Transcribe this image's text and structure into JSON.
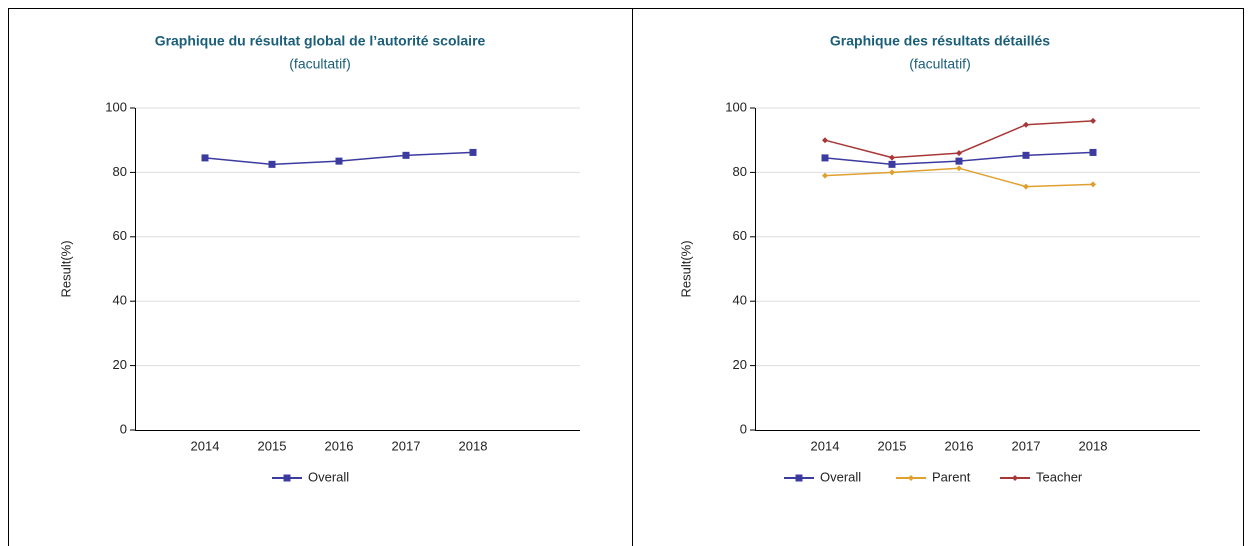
{
  "chart_data": [
    {
      "type": "line",
      "title": "Graphique du résultat global de l’autorité scolaire",
      "subtitle": "(facultatif)",
      "y_label": "Result(%)",
      "categories": [
        "2014",
        "2015",
        "2016",
        "2017",
        "2018"
      ],
      "ylim": [
        0,
        100
      ],
      "yticks": [
        0,
        20,
        40,
        60,
        80,
        100
      ],
      "grid": true,
      "legend": "bottom",
      "series": [
        {
          "name": "Overall",
          "color": "#3b3ba0",
          "marker": "square",
          "values": [
            84.5,
            82.5,
            83.5,
            85.3,
            86.2
          ]
        }
      ]
    },
    {
      "type": "line",
      "title": "Graphique des résultats détaillés",
      "subtitle": "(facultatif)",
      "y_label": "Result(%)",
      "categories": [
        "2014",
        "2015",
        "2016",
        "2017",
        "2018"
      ],
      "ylim": [
        0,
        100
      ],
      "yticks": [
        0,
        20,
        40,
        60,
        80,
        100
      ],
      "grid": true,
      "legend": "bottom",
      "series": [
        {
          "name": "Overall",
          "color": "#3b3ba0",
          "marker": "square",
          "values": [
            84.5,
            82.5,
            83.5,
            85.3,
            86.2
          ]
        },
        {
          "name": "Parent",
          "color": "#e0a030",
          "marker": "diamond",
          "values": [
            79,
            80,
            81.3,
            75.6,
            76.3
          ]
        },
        {
          "name": "Teacher",
          "color": "#a83838",
          "marker": "diamond",
          "values": [
            90,
            84.6,
            86,
            94.8,
            96
          ]
        }
      ]
    }
  ]
}
